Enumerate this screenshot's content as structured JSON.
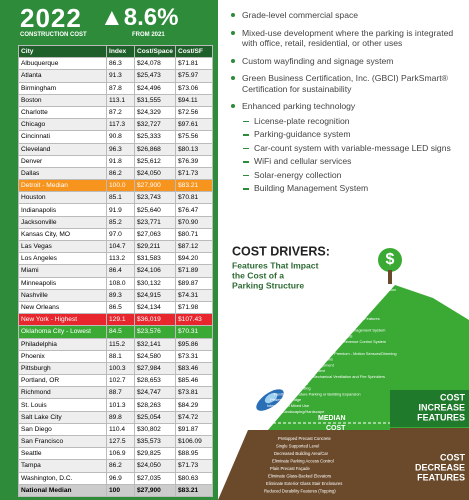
{
  "header": {
    "year": "2022",
    "label": "CONSTRUCTION COST",
    "change": "▲8.6%",
    "change_label": "FROM 2021"
  },
  "table": {
    "columns": [
      "City",
      "Index",
      "Cost/Space",
      "Cost/SF"
    ],
    "rows": [
      [
        "Albuquerque",
        "86.3",
        "$24,078",
        "$71.81"
      ],
      [
        "Atlanta",
        "91.3",
        "$25,473",
        "$75.97"
      ],
      [
        "Birmingham",
        "87.8",
        "$24,496",
        "$73.06"
      ],
      [
        "Boston",
        "113.1",
        "$31,555",
        "$94.11"
      ],
      [
        "Charlotte",
        "87.2",
        "$24,329",
        "$72.56"
      ],
      [
        "Chicago",
        "117.3",
        "$32,727",
        "$97.61"
      ],
      [
        "Cincinnati",
        "90.8",
        "$25,333",
        "$75.56"
      ],
      [
        "Cleveland",
        "96.3",
        "$26,868",
        "$80.13"
      ],
      [
        "Denver",
        "91.8",
        "$25,612",
        "$76.39"
      ],
      [
        "Dallas",
        "86.2",
        "$24,050",
        "$71.73"
      ],
      [
        "Detroit - Median",
        "100.0",
        "$27,900",
        "$83.21"
      ],
      [
        "Houston",
        "85.1",
        "$23,743",
        "$70.81"
      ],
      [
        "Indianapolis",
        "91.9",
        "$25,640",
        "$76.47"
      ],
      [
        "Jacksonville",
        "85.2",
        "$23,771",
        "$70.90"
      ],
      [
        "Kansas City, MO",
        "97.0",
        "$27,063",
        "$80.71"
      ],
      [
        "Las Vegas",
        "104.7",
        "$29,211",
        "$87.12"
      ],
      [
        "Los Angeles",
        "113.2",
        "$31,583",
        "$94.20"
      ],
      [
        "Miami",
        "86.4",
        "$24,106",
        "$71.89"
      ],
      [
        "Minneapolis",
        "108.0",
        "$30,132",
        "$89.87"
      ],
      [
        "Nashville",
        "89.3",
        "$24,915",
        "$74.31"
      ],
      [
        "New Orleans",
        "86.5",
        "$24,134",
        "$71.98"
      ],
      [
        "New York - Highest",
        "129.1",
        "$36,019",
        "$107.43"
      ],
      [
        "Oklahoma City - Lowest",
        "84.5",
        "$23,576",
        "$70.31"
      ],
      [
        "Philadelphia",
        "115.2",
        "$32,141",
        "$95.86"
      ],
      [
        "Phoenix",
        "88.1",
        "$24,580",
        "$73.31"
      ],
      [
        "Pittsburgh",
        "100.3",
        "$27,984",
        "$83.46"
      ],
      [
        "Portland, OR",
        "102.7",
        "$28,653",
        "$85.46"
      ],
      [
        "Richmond",
        "88.7",
        "$24,747",
        "$73.81"
      ],
      [
        "St. Louis",
        "101.3",
        "$28,263",
        "$84.29"
      ],
      [
        "Salt Lake City",
        "89.8",
        "$25,054",
        "$74.72"
      ],
      [
        "San Diego",
        "110.4",
        "$30,802",
        "$91.87"
      ],
      [
        "San Francisco",
        "127.5",
        "$35,573",
        "$106.09"
      ],
      [
        "Seattle",
        "106.9",
        "$29,825",
        "$88.95"
      ],
      [
        "Tampa",
        "86.2",
        "$24,050",
        "$71.73"
      ],
      [
        "Washington, D.C.",
        "96.9",
        "$27,035",
        "$80.63"
      ]
    ],
    "footer": [
      "National Median",
      "100",
      "$27,900",
      "$83.21"
    ]
  },
  "bullets": [
    {
      "text": "Grade-level commercial space"
    },
    {
      "text": "Mixed-use development where the parking is integrated with office, retail, residential, or other uses"
    },
    {
      "text": "Custom wayfinding and signage system"
    },
    {
      "text": "Green Business Certification, Inc. (GBCI) ParkSmart® Certification for sustainability"
    },
    {
      "text": "Enhanced parking technology",
      "sub": [
        "License-plate recognition",
        "Parking-guidance system",
        "Car-count system with variable-message LED signs",
        "WiFi and cellular services",
        "Solar-energy collection",
        "Building Management System"
      ]
    }
  ],
  "cost_drivers": {
    "title": "COST DRIVERS:",
    "subtitle": [
      "Features That Impact",
      "the Cost of a",
      "Parking Structure"
    ],
    "increase_items": [
      "Cast-in-Place Concrete Construction",
      "Increased Building Area/Car",
      "Below-Grade Construction",
      "Architectural Enhancements",
      "Steep Foundation System",
      "Northern Climate Durability Features",
      "Enhanced Technology",
      "Sophisticated Parking Management System",
      "Integration of Solar Panels",
      "Enhanced Access and Revenue Control System",
      "EV Charging Stations",
      "LED Lighting System Premium - Motion Sensors/Dimming",
      "Unique Site Conditions",
      "Stormwater Management",
      "Forestry Management",
      "Enclosed Floors/Mechanical Ventilation and Fire Sprinklers",
      "Bicycle Housing",
      "Custom Wayfinding",
      "Flexibility for Future Parking or Building Expansion",
      "Pedestrian Bridge",
      "Integration of Mixed Use",
      "Enhanced Landscaping/Hardscape"
    ],
    "median_label": [
      "MEDIAN",
      "COST"
    ],
    "decrease_items": [
      "Pretopped Precast Concrete",
      "Single Supported Level",
      "Decreased Building Area/Car",
      "Eliminate Parking Access Control",
      "Plain Precast Façade",
      "Eliminate Glass-Backed Elevators",
      "Eliminate Exterior Glass Stair Enclosures",
      "Reduced Durability Features (Topping)"
    ],
    "increase_label": [
      "COST",
      "INCREASE",
      "FEATURES"
    ],
    "decrease_label": [
      "COST",
      "DECREASE",
      "FEATURES"
    ]
  }
}
